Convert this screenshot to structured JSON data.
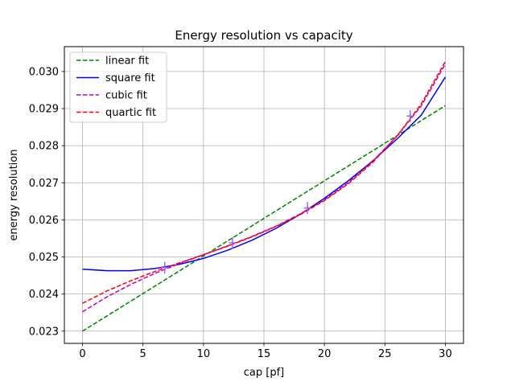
{
  "chart_data": {
    "type": "line",
    "title": "Energy resolution vs capacity",
    "xlabel": "cap [pf]",
    "ylabel": "energy resolution",
    "xlim": [
      -1.5,
      31.5
    ],
    "ylim": [
      0.02267,
      0.03067
    ],
    "xticks": [
      0,
      5,
      10,
      15,
      20,
      25,
      30
    ],
    "xtick_labels": [
      "0",
      "5",
      "10",
      "15",
      "20",
      "25",
      "30"
    ],
    "yticks": [
      0.023,
      0.024,
      0.025,
      0.026,
      0.027,
      0.028,
      0.029,
      0.03
    ],
    "ytick_labels": [
      "0.023",
      "0.024",
      "0.025",
      "0.026",
      "0.027",
      "0.028",
      "0.029",
      "0.030"
    ],
    "grid": true,
    "legend_position": "top-left",
    "data_points": {
      "color": "#9966ff",
      "x": [
        6.8,
        12.4,
        18.6,
        27.1
      ],
      "y": [
        0.02471,
        0.02538,
        0.02632,
        0.0288
      ],
      "xerr": [
        0.3,
        0.3,
        0.3,
        0.3
      ],
      "yerr": [
        0.00016,
        0.00016,
        0.00016,
        0.00016
      ]
    },
    "series": [
      {
        "name": "linear fit",
        "color": "#008000",
        "dash": "dashed",
        "x": [
          0,
          30
        ],
        "y": [
          0.023,
          0.02908
        ]
      },
      {
        "name": "square fit",
        "color": "#0000ff",
        "dash": "solid",
        "x": [
          0,
          2,
          4,
          6,
          8,
          10,
          12,
          14,
          16,
          18,
          20,
          22,
          24,
          26,
          28,
          30
        ],
        "y": [
          0.02467,
          0.02463,
          0.02463,
          0.02469,
          0.0248,
          0.02496,
          0.02518,
          0.02545,
          0.02577,
          0.02615,
          0.02658,
          0.02706,
          0.02759,
          0.02818,
          0.02882,
          0.02985
        ]
      },
      {
        "name": "cubic fit",
        "color": "#bf00bf",
        "dash": "dashed",
        "x": [
          0,
          2,
          4,
          6,
          8,
          10,
          12,
          14,
          16,
          18,
          20,
          22,
          24,
          26,
          28,
          30
        ],
        "y": [
          0.02352,
          0.02392,
          0.02426,
          0.02456,
          0.02482,
          0.02506,
          0.0253,
          0.02555,
          0.02583,
          0.02616,
          0.02654,
          0.02701,
          0.02758,
          0.02826,
          0.02907,
          0.0302
        ]
      },
      {
        "name": "quartic fit",
        "color": "#ff0000",
        "dash": "dashed",
        "x": [
          0,
          2,
          4,
          6,
          8,
          10,
          12,
          14,
          16,
          18,
          20,
          22,
          24,
          26,
          28,
          30
        ],
        "y": [
          0.02375,
          0.02408,
          0.02436,
          0.02461,
          0.02484,
          0.02506,
          0.02529,
          0.02554,
          0.02582,
          0.02614,
          0.02652,
          0.02698,
          0.02755,
          0.02826,
          0.02912,
          0.03027
        ]
      }
    ]
  }
}
